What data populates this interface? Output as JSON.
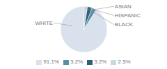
{
  "chart_data": {
    "type": "pie",
    "categories": [
      "WHITE",
      "ASIAN",
      "HISPANIC",
      "BLACK"
    ],
    "values": [
      91.1,
      3.2,
      3.2,
      2.5
    ],
    "value_labels": [
      "91.1%",
      "3.2%",
      "3.2%",
      "2.5%"
    ],
    "colors": [
      "#d9e2ec",
      "#5b8fa8",
      "#2e5f7a",
      "#c9d9e4"
    ],
    "legend": "bottom"
  }
}
